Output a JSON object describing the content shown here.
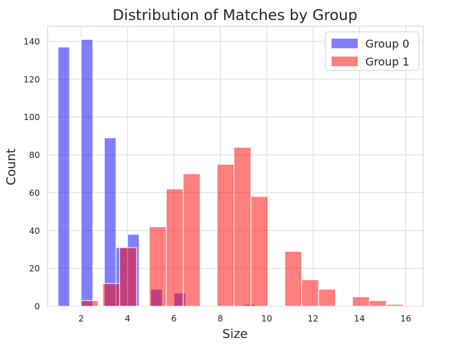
{
  "chart_data": {
    "type": "bar",
    "title": "Distribution of Matches by Group",
    "xlabel": "Size",
    "ylabel": "Count",
    "xlim": [
      0.55,
      16.75
    ],
    "ylim": [
      0,
      148
    ],
    "xticks": [
      2,
      4,
      6,
      8,
      10,
      12,
      14,
      16
    ],
    "yticks": [
      0,
      20,
      40,
      60,
      80,
      100,
      120,
      140
    ],
    "grid": true,
    "legend_position": "top-right",
    "series": [
      {
        "name": "Group 0",
        "color": "#0000ff",
        "opacity": 0.5,
        "bars": [
          {
            "x0": 1.0,
            "x1": 1.5,
            "value": 137
          },
          {
            "x0": 2.0,
            "x1": 2.5,
            "value": 141
          },
          {
            "x0": 3.0,
            "x1": 3.5,
            "value": 89
          },
          {
            "x0": 3.5,
            "x1": 4.0,
            "value": 31
          },
          {
            "x0": 4.0,
            "x1": 4.5,
            "value": 38
          },
          {
            "x0": 5.0,
            "x1": 5.5,
            "value": 9
          },
          {
            "x0": 6.0,
            "x1": 6.5,
            "value": 7
          },
          {
            "x0": 9.0,
            "x1": 9.5,
            "value": 1
          }
        ]
      },
      {
        "name": "Group 1",
        "color": "#ff0000",
        "opacity": 0.5,
        "bars": [
          {
            "x0": 2.0,
            "x1": 2.73,
            "value": 3
          },
          {
            "x0": 2.93,
            "x1": 3.66,
            "value": 12
          },
          {
            "x0": 3.66,
            "x1": 4.39,
            "value": 31
          },
          {
            "x0": 4.94,
            "x1": 5.67,
            "value": 42
          },
          {
            "x0": 5.67,
            "x1": 6.4,
            "value": 62
          },
          {
            "x0": 6.4,
            "x1": 7.13,
            "value": 70
          },
          {
            "x0": 7.86,
            "x1": 8.59,
            "value": 75
          },
          {
            "x0": 8.59,
            "x1": 9.32,
            "value": 84
          },
          {
            "x0": 9.32,
            "x1": 10.05,
            "value": 58
          },
          {
            "x0": 10.78,
            "x1": 11.51,
            "value": 29
          },
          {
            "x0": 11.51,
            "x1": 12.24,
            "value": 14
          },
          {
            "x0": 12.24,
            "x1": 12.97,
            "value": 9
          },
          {
            "x0": 13.7,
            "x1": 14.43,
            "value": 5
          },
          {
            "x0": 14.43,
            "x1": 15.16,
            "value": 3
          },
          {
            "x0": 15.16,
            "x1": 15.89,
            "value": 1
          }
        ]
      }
    ]
  }
}
